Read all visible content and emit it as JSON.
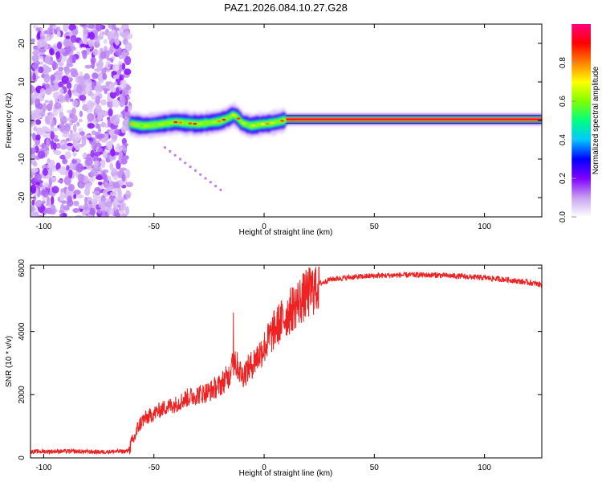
{
  "figure": {
    "title": "PAZ1.2026.084.10.27.G28"
  },
  "chart_data": [
    {
      "type": "heatmap",
      "title": "PAZ1.2026.084.10.27.G28",
      "xlabel": "Height of straight line (km)",
      "ylabel": "Frequency (Hz)",
      "xlim": [
        -106,
        126
      ],
      "ylim": [
        -25,
        25
      ],
      "x_ticks": [
        -100,
        -50,
        0,
        50,
        100
      ],
      "y_ticks": [
        -20,
        -10,
        0,
        10,
        20
      ],
      "colorbar": {
        "label": "Normalized spectral amplitude",
        "range": [
          0,
          1
        ],
        "ticks": [
          0.0,
          0.2,
          0.4,
          0.6,
          0.8
        ],
        "tick_labels": [
          "0.0",
          "0.2",
          "0.4",
          "0.6",
          "0.8"
        ],
        "colors": [
          "#ffffff",
          "#c8a0f0",
          "#8000ff",
          "#0000ff",
          "#00c8ff",
          "#00ff80",
          "#80ff00",
          "#ffff00",
          "#ff8000",
          "#ff0000",
          "#ff0080"
        ]
      },
      "regions": [
        {
          "name": "noise",
          "x_range": [
            -106,
            -61
          ],
          "freq_range": [
            -25,
            25
          ],
          "amplitude": 0.12
        },
        {
          "name": "wavering tone",
          "x_range": [
            -61,
            10
          ],
          "center_freq_hz": 0.0,
          "amplitude": 0.55
        },
        {
          "name": "steady tone",
          "x_range": [
            10,
            126
          ],
          "center_freq_hz": 0.3,
          "amplitude": 0.95
        }
      ],
      "ridge": {
        "x": [
          -61,
          -55,
          -50,
          -45,
          -40,
          -35,
          -30,
          -25,
          -20,
          -16,
          -14,
          -12,
          -10,
          -6,
          -2,
          2,
          6,
          10,
          11,
          126
        ],
        "freq": [
          -0.8,
          -1.4,
          -1.2,
          -0.8,
          -0.4,
          -0.7,
          -0.9,
          -0.6,
          -0.2,
          0.7,
          1.5,
          0.8,
          -0.6,
          -1.4,
          -1.0,
          -0.8,
          -0.4,
          0.2,
          0.3,
          0.3
        ]
      }
    },
    {
      "type": "line",
      "xlabel": "Height of straight line (km)",
      "ylabel": "SNR (10 * v/v)",
      "xlim": [
        -106,
        126
      ],
      "ylim": [
        0,
        6100
      ],
      "x_ticks": [
        -100,
        -50,
        0,
        50,
        100
      ],
      "y_ticks": [
        0,
        2000,
        4000,
        6000
      ],
      "series": [
        {
          "name": "SNR",
          "color": "#ee2222",
          "x": [
            -106,
            -90,
            -75,
            -62,
            -59,
            -57,
            -55,
            -50,
            -45,
            -40,
            -35,
            -30,
            -25,
            -20,
            -16,
            -14,
            -12,
            -10,
            -5,
            0,
            5,
            10,
            15,
            20,
            25,
            30,
            40,
            50,
            60,
            70,
            80,
            90,
            100,
            110,
            120,
            126
          ],
          "y": [
            200,
            210,
            190,
            210,
            600,
            1000,
            1200,
            1400,
            1600,
            1700,
            1900,
            2000,
            2100,
            2300,
            2600,
            3000,
            2900,
            2600,
            3000,
            3500,
            4100,
            4500,
            4900,
            5200,
            5500,
            5650,
            5720,
            5760,
            5780,
            5790,
            5780,
            5740,
            5700,
            5640,
            5550,
            5480
          ]
        }
      ]
    }
  ]
}
